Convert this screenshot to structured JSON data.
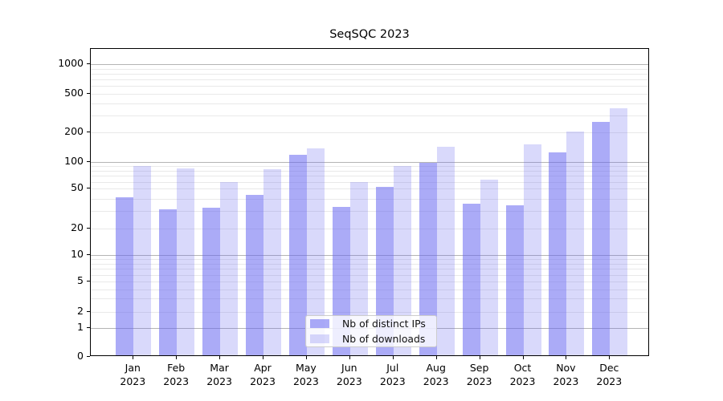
{
  "figure": {
    "title": "SeqSQC 2023"
  },
  "chart_data": {
    "type": "bar",
    "title": "SeqSQC 2023",
    "categories": [
      "Jan 2023",
      "Feb 2023",
      "Mar 2023",
      "Apr 2023",
      "May 2023",
      "Jun 2023",
      "Jul 2023",
      "Aug 2023",
      "Sep 2023",
      "Oct 2023",
      "Nov 2023",
      "Dec 2023"
    ],
    "series": [
      {
        "name": "Nb of distinct IPs",
        "color": "rgba(102,102,240,0.55)",
        "values": [
          40,
          30,
          31,
          42,
          114,
          32,
          50,
          95,
          34,
          33,
          121,
          250
        ]
      },
      {
        "name": "Nb of downloads",
        "color": "rgba(102,102,240,0.25)",
        "values": [
          87,
          81,
          57,
          80,
          133,
          57,
          87,
          139,
          61,
          146,
          197,
          345
        ]
      }
    ],
    "xlabel": "",
    "ylabel": "",
    "yscale": "symlog",
    "yticks": [
      0,
      1,
      2,
      5,
      10,
      20,
      50,
      100,
      200,
      500,
      1000
    ],
    "ylim": [
      0,
      1450
    ],
    "grid": "horizontal major+minor",
    "legend_position": "lower center"
  },
  "colors": {
    "bar_base": "#6666f0",
    "grid_major": "#b4b4b4",
    "grid_minor": "#e9e9e9",
    "axis": "#000000"
  }
}
